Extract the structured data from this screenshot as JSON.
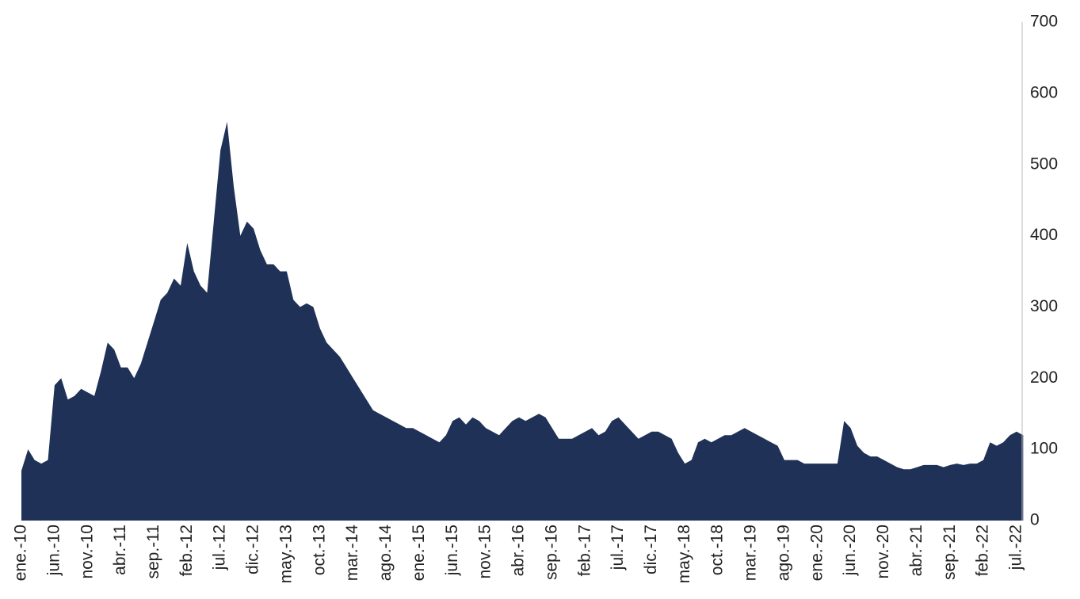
{
  "chart_data": {
    "type": "area",
    "categories": [
      "ene.-10",
      null,
      null,
      null,
      null,
      "jun.-10",
      null,
      null,
      null,
      null,
      "nov.-10",
      null,
      null,
      null,
      null,
      "abr.-11",
      null,
      null,
      null,
      null,
      "sep.-11",
      null,
      null,
      null,
      null,
      "feb.-12",
      null,
      null,
      null,
      null,
      "jul.-12",
      null,
      null,
      null,
      null,
      "dic.-12",
      null,
      null,
      null,
      null,
      "may.-13",
      null,
      null,
      null,
      null,
      "oct.-13",
      null,
      null,
      null,
      null,
      "mar.-14",
      null,
      null,
      null,
      null,
      "ago.-14",
      null,
      null,
      null,
      null,
      "ene.-15",
      null,
      null,
      null,
      null,
      "jun.-15",
      null,
      null,
      null,
      null,
      "nov.-15",
      null,
      null,
      null,
      null,
      "abr.-16",
      null,
      null,
      null,
      null,
      "sep.-16",
      null,
      null,
      null,
      null,
      "feb.-17",
      null,
      null,
      null,
      null,
      "jul.-17",
      null,
      null,
      null,
      null,
      "dic.-17",
      null,
      null,
      null,
      null,
      "may.-18",
      null,
      null,
      null,
      null,
      "oct.-18",
      null,
      null,
      null,
      null,
      "mar.-19",
      null,
      null,
      null,
      null,
      "ago.-19",
      null,
      null,
      null,
      null,
      "ene.-20",
      null,
      null,
      null,
      null,
      "jun.-20",
      null,
      null,
      null,
      null,
      "nov.-20",
      null,
      null,
      null,
      null,
      "abr.-21",
      null,
      null,
      null,
      null,
      "sep.-21",
      null,
      null,
      null,
      null,
      "feb.-22",
      null,
      null,
      null,
      null,
      "jul.-22",
      null
    ],
    "values": [
      70,
      100,
      85,
      80,
      85,
      190,
      200,
      170,
      175,
      185,
      180,
      175,
      210,
      250,
      240,
      215,
      215,
      200,
      220,
      250,
      280,
      310,
      320,
      340,
      330,
      390,
      350,
      330,
      320,
      420,
      520,
      560,
      470,
      400,
      420,
      410,
      380,
      360,
      360,
      350,
      350,
      310,
      300,
      305,
      300,
      270,
      250,
      240,
      230,
      215,
      200,
      185,
      170,
      155,
      150,
      145,
      140,
      135,
      130,
      130,
      125,
      120,
      115,
      110,
      120,
      140,
      145,
      135,
      145,
      140,
      130,
      125,
      120,
      130,
      140,
      145,
      140,
      145,
      150,
      145,
      130,
      115,
      115,
      115,
      120,
      125,
      130,
      120,
      125,
      140,
      145,
      135,
      125,
      115,
      120,
      125,
      125,
      120,
      115,
      95,
      80,
      85,
      110,
      115,
      110,
      115,
      120,
      120,
      125,
      130,
      125,
      120,
      115,
      110,
      105,
      85,
      85,
      85,
      80,
      80,
      80,
      80,
      80,
      80,
      140,
      130,
      105,
      95,
      90,
      90,
      85,
      80,
      75,
      72,
      72,
      75,
      78,
      78,
      78,
      75,
      78,
      80,
      78,
      80,
      80,
      85,
      110,
      105,
      110,
      120,
      125,
      120
    ],
    "color": "#1f3157",
    "ylim": [
      0,
      700
    ],
    "yticks": [
      0,
      100,
      200,
      300,
      400,
      500,
      600,
      700
    ],
    "grid": false
  }
}
